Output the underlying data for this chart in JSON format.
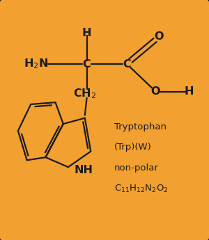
{
  "background_color": "#F2A030",
  "border_color": "#1a1a1a",
  "text_color": "#1a1a1a",
  "figsize": [
    3.0,
    3.45
  ],
  "dpi": 100,
  "xlim": [
    0,
    10
  ],
  "ylim": [
    0,
    11.5
  ],
  "info_lines": [
    "Tryptophan",
    "(Trp)(W)",
    "non-polar"
  ],
  "formula": "C$_{11}$H$_{12}$N$_2$O$_2$"
}
